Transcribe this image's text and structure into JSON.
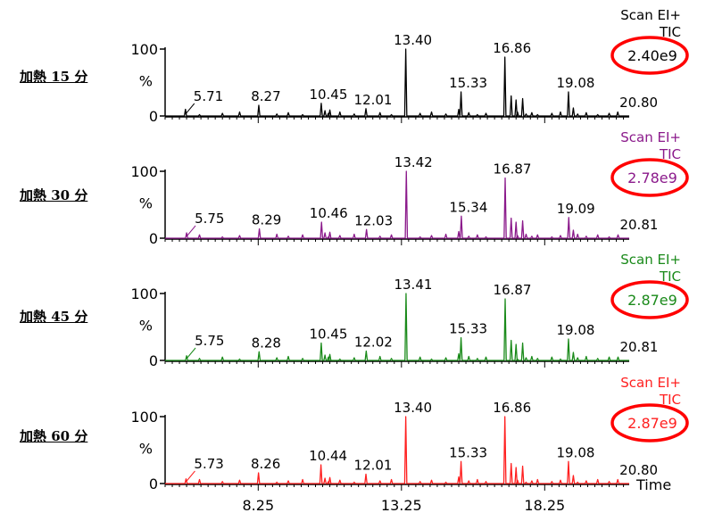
{
  "chart_data": {
    "type": "line",
    "x_axis": {
      "label": "Time",
      "ticks": [
        "8.25",
        "13.25",
        "18.25"
      ],
      "tick_values": [
        8.25,
        13.25,
        18.25
      ],
      "range": [
        5.0,
        21.2
      ]
    },
    "y_axis": {
      "label": "%",
      "ticks": [
        "100",
        "0"
      ],
      "range": [
        0,
        100
      ]
    },
    "panels": [
      {
        "label": "加熱 15 分",
        "color": "#000000",
        "scan": "Scan EI+",
        "tic": "TIC",
        "intensity": "2.40e9",
        "peaks": [
          {
            "x": 5.71,
            "y": 10,
            "label": "5.71"
          },
          {
            "x": 8.27,
            "y": 16,
            "label": "8.27"
          },
          {
            "x": 10.45,
            "y": 19,
            "label": "10.45"
          },
          {
            "x": 12.01,
            "y": 11,
            "label": "12.01"
          },
          {
            "x": 13.4,
            "y": 100,
            "label": "13.40"
          },
          {
            "x": 15.33,
            "y": 36,
            "label": "15.33"
          },
          {
            "x": 16.86,
            "y": 88,
            "label": "16.86"
          },
          {
            "x": 19.08,
            "y": 36,
            "label": "19.08"
          },
          {
            "x": 20.8,
            "y": 6,
            "label": "20.80"
          }
        ]
      },
      {
        "label": "加熱 30 分",
        "color": "#8b1a8b",
        "scan": "Scan EI+",
        "tic": "TIC",
        "intensity": "2.78e9",
        "peaks": [
          {
            "x": 5.75,
            "y": 8,
            "label": "5.75"
          },
          {
            "x": 8.29,
            "y": 14,
            "label": "8.29"
          },
          {
            "x": 10.46,
            "y": 24,
            "label": "10.46"
          },
          {
            "x": 12.03,
            "y": 13,
            "label": "12.03"
          },
          {
            "x": 13.42,
            "y": 100,
            "label": "13.42"
          },
          {
            "x": 15.34,
            "y": 33,
            "label": "15.34"
          },
          {
            "x": 16.87,
            "y": 90,
            "label": "16.87"
          },
          {
            "x": 19.09,
            "y": 31,
            "label": "19.09"
          },
          {
            "x": 20.81,
            "y": 5,
            "label": "20.81"
          }
        ]
      },
      {
        "label": "加熱 45 分",
        "color": "#1a8a1a",
        "scan": "Scan EI+",
        "tic": "TIC",
        "intensity": "2.87e9",
        "peaks": [
          {
            "x": 5.75,
            "y": 7,
            "label": "5.75"
          },
          {
            "x": 8.28,
            "y": 13,
            "label": "8.28"
          },
          {
            "x": 10.45,
            "y": 26,
            "label": "10.45"
          },
          {
            "x": 12.02,
            "y": 14,
            "label": "12.02"
          },
          {
            "x": 13.41,
            "y": 100,
            "label": "13.41"
          },
          {
            "x": 15.33,
            "y": 34,
            "label": "15.33"
          },
          {
            "x": 16.87,
            "y": 92,
            "label": "16.87"
          },
          {
            "x": 19.08,
            "y": 32,
            "label": "19.08"
          },
          {
            "x": 20.81,
            "y": 5,
            "label": "20.81"
          }
        ]
      },
      {
        "label": "加熱 60 分",
        "color": "#ff2020",
        "scan": "Scan EI+",
        "tic": "TIC",
        "intensity": "2.87e9",
        "peaks": [
          {
            "x": 5.73,
            "y": 7,
            "label": "5.73"
          },
          {
            "x": 8.26,
            "y": 16,
            "label": "8.26"
          },
          {
            "x": 10.44,
            "y": 28,
            "label": "10.44"
          },
          {
            "x": 12.01,
            "y": 14,
            "label": "12.01"
          },
          {
            "x": 13.4,
            "y": 100,
            "label": "13.40"
          },
          {
            "x": 15.33,
            "y": 33,
            "label": "15.33"
          },
          {
            "x": 16.86,
            "y": 100,
            "label": "16.86"
          },
          {
            "x": 19.08,
            "y": 33,
            "label": "19.08"
          },
          {
            "x": 20.8,
            "y": 6,
            "label": "20.80"
          }
        ]
      }
    ]
  }
}
